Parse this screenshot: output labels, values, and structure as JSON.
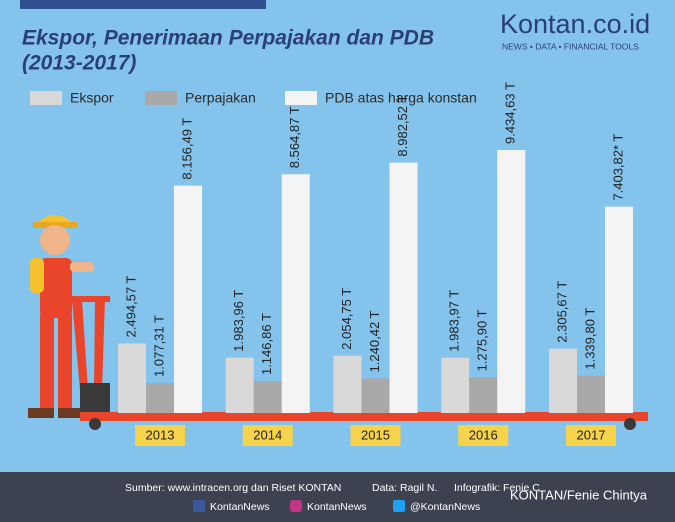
{
  "chart_data": {
    "type": "bar",
    "title": "Ekspor, Penerimaan Perpajakan dan PDB",
    "subtitle": "(2013-2017)",
    "brand": {
      "name": "Kontan.co.id",
      "tagline": "NEWS • DATA • FINANCIAL TOOLS"
    },
    "categories": [
      "2013",
      "2014",
      "2015",
      "2016",
      "2017"
    ],
    "series": [
      {
        "name": "Ekspor",
        "color": "#d9d9d9",
        "values": [
          2494.57,
          1983.96,
          2054.75,
          1983.97,
          2305.67
        ],
        "value_labels": [
          "2.494,57 T",
          "1.983,96 T",
          "2.054,75 T",
          "1.983,97 T",
          "2.305,67 T"
        ]
      },
      {
        "name": "Perpajakan",
        "color": "#a9a9a9",
        "values": [
          1077.31,
          1146.86,
          1240.42,
          1275.9,
          1339.8
        ],
        "value_labels": [
          "1.077,31 T",
          "1.146,86 T",
          "1.240,42 T",
          "1.275,90 T",
          "1.339,80 T"
        ]
      },
      {
        "name": "PDB atas harga konstan",
        "color": "#f4f4f4",
        "values": [
          8156.49,
          8564.87,
          8982.52,
          9434.63,
          7403.82
        ],
        "value_labels": [
          "8.156,49 T",
          "8.564,87 T",
          "8.982,52 T",
          "9.434,63 T",
          "7.403,82* T"
        ]
      }
    ],
    "footer": {
      "source": "Sumber: www.intracen.org dan Riset KONTAN",
      "data": "Data: Ragil N.",
      "infographic": "Infografik: Fenie C",
      "credit": "KONTAN/Fenie Chintya",
      "social": [
        "KontanNews",
        "KontanNews",
        "@KontanNews"
      ]
    }
  }
}
